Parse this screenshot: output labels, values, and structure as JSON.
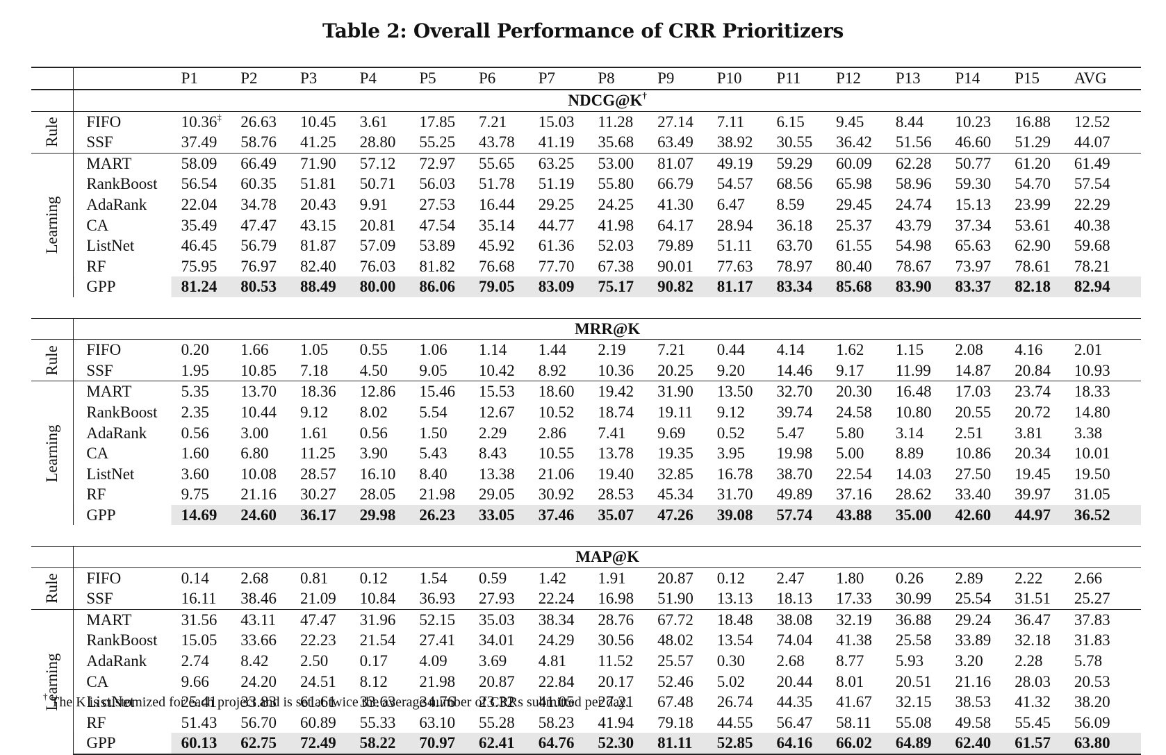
{
  "caption": "Table 2: Overall Performance of CRR Prioritizers",
  "columns": [
    "P1",
    "P2",
    "P3",
    "P4",
    "P5",
    "P6",
    "P7",
    "P8",
    "P9",
    "P10",
    "P11",
    "P12",
    "P13",
    "P14",
    "P15",
    "AVG"
  ],
  "groups": {
    "rule": "Rule",
    "learning": "Learning"
  },
  "marks": {
    "dagger": "†",
    "ddagger": "‡"
  },
  "metrics": [
    {
      "title": "NDCG@K",
      "rows": [
        {
          "method": "FIFO",
          "values": [
            "10.36",
            "26.63",
            "10.45",
            "3.61",
            "17.85",
            "7.21",
            "15.03",
            "11.28",
            "27.14",
            "7.11",
            "6.15",
            "9.45",
            "8.44",
            "10.23",
            "16.88",
            "12.52"
          ]
        },
        {
          "method": "SSF",
          "values": [
            "37.49",
            "58.76",
            "41.25",
            "28.80",
            "55.25",
            "43.78",
            "41.19",
            "35.68",
            "63.49",
            "38.92",
            "30.55",
            "36.42",
            "51.56",
            "46.60",
            "51.29",
            "44.07"
          ]
        },
        {
          "method": "MART",
          "values": [
            "58.09",
            "66.49",
            "71.90",
            "57.12",
            "72.97",
            "55.65",
            "63.25",
            "53.00",
            "81.07",
            "49.19",
            "59.29",
            "60.09",
            "62.28",
            "50.77",
            "61.20",
            "61.49"
          ]
        },
        {
          "method": "RankBoost",
          "values": [
            "56.54",
            "60.35",
            "51.81",
            "50.71",
            "56.03",
            "51.78",
            "51.19",
            "55.80",
            "66.79",
            "54.57",
            "68.56",
            "65.98",
            "58.96",
            "59.30",
            "54.70",
            "57.54"
          ]
        },
        {
          "method": "AdaRank",
          "values": [
            "22.04",
            "34.78",
            "20.43",
            "9.91",
            "27.53",
            "16.44",
            "29.25",
            "24.25",
            "41.30",
            "6.47",
            "8.59",
            "29.45",
            "24.74",
            "15.13",
            "23.99",
            "22.29"
          ]
        },
        {
          "method": "CA",
          "values": [
            "35.49",
            "47.47",
            "43.15",
            "20.81",
            "47.54",
            "35.14",
            "44.77",
            "41.98",
            "64.17",
            "28.94",
            "36.18",
            "25.37",
            "43.79",
            "37.34",
            "53.61",
            "40.38"
          ]
        },
        {
          "method": "ListNet",
          "values": [
            "46.45",
            "56.79",
            "81.87",
            "57.09",
            "53.89",
            "45.92",
            "61.36",
            "52.03",
            "79.89",
            "51.11",
            "63.70",
            "61.55",
            "54.98",
            "65.63",
            "62.90",
            "59.68"
          ]
        },
        {
          "method": "RF",
          "values": [
            "75.95",
            "76.97",
            "82.40",
            "76.03",
            "81.82",
            "76.68",
            "77.70",
            "67.38",
            "90.01",
            "77.63",
            "78.97",
            "80.40",
            "78.67",
            "73.97",
            "78.61",
            "78.21"
          ]
        },
        {
          "method": "GPP",
          "values": [
            "81.24",
            "80.53",
            "88.49",
            "80.00",
            "86.06",
            "79.05",
            "83.09",
            "75.17",
            "90.82",
            "81.17",
            "83.34",
            "85.68",
            "83.90",
            "83.37",
            "82.18",
            "82.94"
          ]
        }
      ]
    },
    {
      "title": "MRR@K",
      "rows": [
        {
          "method": "FIFO",
          "values": [
            "0.20",
            "1.66",
            "1.05",
            "0.55",
            "1.06",
            "1.14",
            "1.44",
            "2.19",
            "7.21",
            "0.44",
            "4.14",
            "1.62",
            "1.15",
            "2.08",
            "4.16",
            "2.01"
          ]
        },
        {
          "method": "SSF",
          "values": [
            "1.95",
            "10.85",
            "7.18",
            "4.50",
            "9.05",
            "10.42",
            "8.92",
            "10.36",
            "20.25",
            "9.20",
            "14.46",
            "9.17",
            "11.99",
            "14.87",
            "20.84",
            "10.93"
          ]
        },
        {
          "method": "MART",
          "values": [
            "5.35",
            "13.70",
            "18.36",
            "12.86",
            "15.46",
            "15.53",
            "18.60",
            "19.42",
            "31.90",
            "13.50",
            "32.70",
            "20.30",
            "16.48",
            "17.03",
            "23.74",
            "18.33"
          ]
        },
        {
          "method": "RankBoost",
          "values": [
            "2.35",
            "10.44",
            "9.12",
            "8.02",
            "5.54",
            "12.67",
            "10.52",
            "18.74",
            "19.11",
            "9.12",
            "39.74",
            "24.58",
            "10.80",
            "20.55",
            "20.72",
            "14.80"
          ]
        },
        {
          "method": "AdaRank",
          "values": [
            "0.56",
            "3.00",
            "1.61",
            "0.56",
            "1.50",
            "2.29",
            "2.86",
            "7.41",
            "9.69",
            "0.52",
            "5.47",
            "5.80",
            "3.14",
            "2.51",
            "3.81",
            "3.38"
          ]
        },
        {
          "method": "CA",
          "values": [
            "1.60",
            "6.80",
            "11.25",
            "3.90",
            "5.43",
            "8.43",
            "10.55",
            "13.78",
            "19.35",
            "3.95",
            "19.98",
            "5.00",
            "8.89",
            "10.86",
            "20.34",
            "10.01"
          ]
        },
        {
          "method": "ListNet",
          "values": [
            "3.60",
            "10.08",
            "28.57",
            "16.10",
            "8.40",
            "13.38",
            "21.06",
            "19.40",
            "32.85",
            "16.78",
            "38.70",
            "22.54",
            "14.03",
            "27.50",
            "19.45",
            "19.50"
          ]
        },
        {
          "method": "RF",
          "values": [
            "9.75",
            "21.16",
            "30.27",
            "28.05",
            "21.98",
            "29.05",
            "30.92",
            "28.53",
            "45.34",
            "31.70",
            "49.89",
            "37.16",
            "28.62",
            "33.40",
            "39.97",
            "31.05"
          ]
        },
        {
          "method": "GPP",
          "values": [
            "14.69",
            "24.60",
            "36.17",
            "29.98",
            "26.23",
            "33.05",
            "37.46",
            "35.07",
            "47.26",
            "39.08",
            "57.74",
            "43.88",
            "35.00",
            "42.60",
            "44.97",
            "36.52"
          ]
        }
      ]
    },
    {
      "title": "MAP@K",
      "rows": [
        {
          "method": "FIFO",
          "values": [
            "0.14",
            "2.68",
            "0.81",
            "0.12",
            "1.54",
            "0.59",
            "1.42",
            "1.91",
            "20.87",
            "0.12",
            "2.47",
            "1.80",
            "0.26",
            "2.89",
            "2.22",
            "2.66"
          ]
        },
        {
          "method": "SSF",
          "values": [
            "16.11",
            "38.46",
            "21.09",
            "10.84",
            "36.93",
            "27.93",
            "22.24",
            "16.98",
            "51.90",
            "13.13",
            "18.13",
            "17.33",
            "30.99",
            "25.54",
            "31.51",
            "25.27"
          ]
        },
        {
          "method": "MART",
          "values": [
            "31.56",
            "43.11",
            "47.47",
            "31.96",
            "52.15",
            "35.03",
            "38.34",
            "28.76",
            "67.72",
            "18.48",
            "38.08",
            "32.19",
            "36.88",
            "29.24",
            "36.47",
            "37.83"
          ]
        },
        {
          "method": "RankBoost",
          "values": [
            "15.05",
            "33.66",
            "22.23",
            "21.54",
            "27.41",
            "34.01",
            "24.29",
            "30.56",
            "48.02",
            "13.54",
            "74.04",
            "41.38",
            "25.58",
            "33.89",
            "32.18",
            "31.83"
          ]
        },
        {
          "method": "AdaRank",
          "values": [
            "2.74",
            "8.42",
            "2.50",
            "0.17",
            "4.09",
            "3.69",
            "4.81",
            "11.52",
            "25.57",
            "0.30",
            "2.68",
            "8.77",
            "5.93",
            "3.20",
            "2.28",
            "5.78"
          ]
        },
        {
          "method": "CA",
          "values": [
            "9.66",
            "24.20",
            "24.51",
            "8.12",
            "21.98",
            "20.87",
            "22.84",
            "20.17",
            "52.46",
            "5.02",
            "20.44",
            "8.01",
            "20.51",
            "21.16",
            "28.03",
            "20.53"
          ]
        },
        {
          "method": "ListNet",
          "values": [
            "25.41",
            "33.83",
            "61.61",
            "33.63",
            "34.76",
            "23.32",
            "41.05",
            "27.21",
            "67.48",
            "26.74",
            "44.35",
            "41.67",
            "32.15",
            "38.53",
            "41.32",
            "38.20"
          ]
        },
        {
          "method": "RF",
          "values": [
            "51.43",
            "56.70",
            "60.89",
            "55.33",
            "63.10",
            "55.28",
            "58.23",
            "41.94",
            "79.18",
            "44.55",
            "56.47",
            "58.11",
            "55.08",
            "49.58",
            "55.45",
            "56.09"
          ]
        },
        {
          "method": "GPP",
          "values": [
            "60.13",
            "62.75",
            "72.49",
            "58.22",
            "70.97",
            "62.41",
            "64.76",
            "52.30",
            "81.11",
            "52.85",
            "64.16",
            "66.02",
            "64.89",
            "62.40",
            "61.57",
            "63.80"
          ]
        }
      ]
    }
  ],
  "footnote": "The K is customized for each project and is set at twice the average number of CRRs submitted per day."
}
